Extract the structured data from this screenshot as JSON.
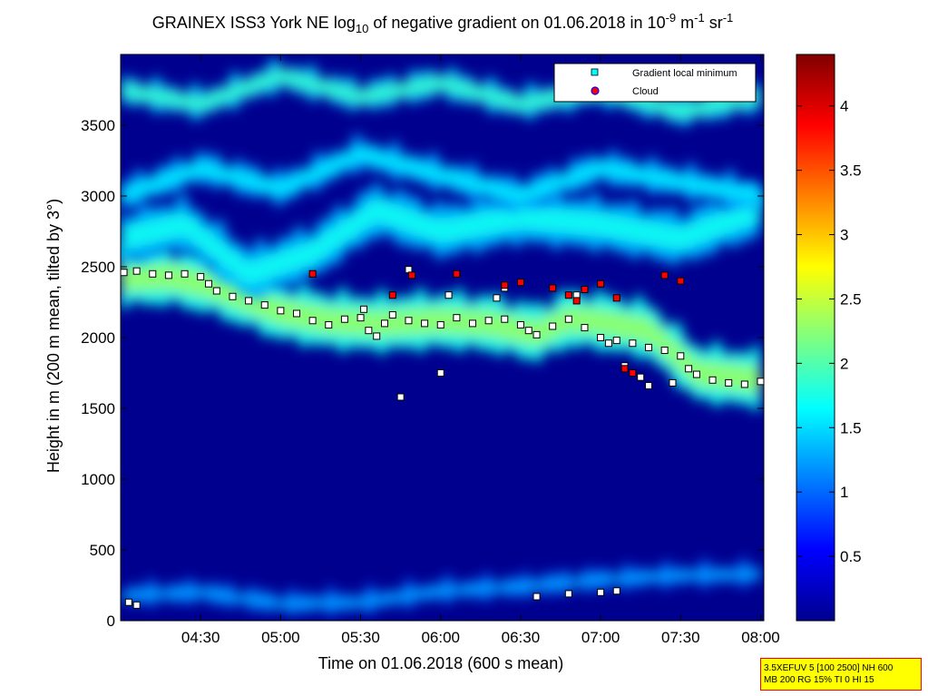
{
  "title": {
    "prefix": "GRAINEX ISS3 York NE log",
    "sub": "10",
    "middle": " of negative gradient on 01.06.2018 in 10",
    "sup1": "-9",
    "unit1": " m",
    "sup2": "-1",
    "unit2": " sr",
    "sup3": "-1"
  },
  "settings_box": {
    "line1": "3.5XEFUV 5 [100 2500] NH 600",
    "line2": "MB 200 RG 15% TI 0 HI 15"
  },
  "colors": {
    "background_field": "#00008f",
    "frame": "#000000",
    "local_minimum_marker": "#00ffff",
    "cloud_marker": "#ff0000"
  },
  "chart_data": {
    "type": "heatmap",
    "xlabel": "Time on 01.06.2018 (600 s mean)",
    "ylabel": "Height in m (200 m mean, tilted by 3°)",
    "x_ticks": [
      "04:30",
      "05:00",
      "05:30",
      "06:00",
      "06:30",
      "07:00",
      "07:30",
      "08:00"
    ],
    "x_tick_hours": [
      4.5,
      5.0,
      5.5,
      6.0,
      6.5,
      7.0,
      7.5,
      8.0
    ],
    "xlim_hours": [
      4.0,
      8.02
    ],
    "y_ticks": [
      0,
      500,
      1000,
      1500,
      2000,
      2500,
      3000,
      3500
    ],
    "ylim": [
      0,
      4000
    ],
    "colorbar": {
      "colormap": "jet",
      "range": [
        0.0,
        4.4
      ],
      "ticks": [
        0.5,
        1,
        1.5,
        2,
        2.5,
        3,
        3.5,
        4
      ],
      "tick_labels": [
        "0.5",
        "1",
        "1.5",
        "2",
        "2.5",
        "3",
        "3.5",
        "4"
      ]
    },
    "legend": {
      "location": "top-right",
      "entries": [
        {
          "label": "Gradient local minimum",
          "marker": "square",
          "color": "#00ffff"
        },
        {
          "label": "Cloud",
          "marker": "circle",
          "color": "#ff0000"
        }
      ]
    },
    "layers": [
      {
        "name": "",
        "profile": [
          [
            4.0,
            2420
          ],
          [
            4.3,
            2430
          ],
          [
            4.55,
            2370
          ],
          [
            5.0,
            2180
          ],
          [
            5.3,
            2120
          ],
          [
            5.6,
            2100
          ],
          [
            6.0,
            2120
          ],
          [
            6.3,
            2100
          ],
          [
            6.6,
            2030
          ],
          [
            6.8,
            2130
          ],
          [
            7.0,
            2110
          ],
          [
            7.3,
            2050
          ],
          [
            7.6,
            1750
          ],
          [
            8.0,
            1700
          ]
        ],
        "thickness": 380,
        "level": 2.3
      },
      {
        "name": "",
        "profile": [
          [
            4.0,
            2700
          ],
          [
            4.4,
            2800
          ],
          [
            4.8,
            2450
          ],
          [
            5.2,
            2600
          ],
          [
            5.6,
            2900
          ],
          [
            6.0,
            2750
          ],
          [
            6.5,
            2850
          ],
          [
            7.0,
            2800
          ],
          [
            7.5,
            2700
          ],
          [
            8.0,
            2900
          ]
        ],
        "thickness": 350,
        "level": 1.7
      },
      {
        "name": "",
        "profile": [
          [
            4.0,
            3000
          ],
          [
            4.5,
            3200
          ],
          [
            5.0,
            3050
          ],
          [
            5.5,
            3300
          ],
          [
            6.0,
            3150
          ],
          [
            6.5,
            3000
          ],
          [
            7.0,
            3200
          ],
          [
            7.5,
            3100
          ],
          [
            8.0,
            3000
          ]
        ],
        "thickness": 200,
        "level": 1.6
      },
      {
        "name": "",
        "profile": [
          [
            4.0,
            3750
          ],
          [
            4.5,
            3650
          ],
          [
            5.0,
            3850
          ],
          [
            5.5,
            3700
          ],
          [
            6.0,
            3800
          ],
          [
            6.5,
            3650
          ],
          [
            7.0,
            3750
          ],
          [
            7.5,
            3600
          ],
          [
            8.0,
            3700
          ]
        ],
        "thickness": 180,
        "level": 1.9
      },
      {
        "name": "",
        "profile": [
          [
            4.0,
            180
          ],
          [
            4.5,
            200
          ],
          [
            5.0,
            120
          ],
          [
            5.5,
            130
          ],
          [
            6.0,
            210
          ],
          [
            6.5,
            240
          ],
          [
            7.0,
            290
          ],
          [
            7.5,
            320
          ],
          [
            8.0,
            330
          ]
        ],
        "thickness": 120,
        "level": 1.3
      }
    ],
    "series": [
      {
        "name": "Gradient local minimum",
        "marker": "square",
        "points": [
          [
            4.02,
            2460
          ],
          [
            4.1,
            2470
          ],
          [
            4.2,
            2450
          ],
          [
            4.3,
            2440
          ],
          [
            4.4,
            2450
          ],
          [
            4.5,
            2430
          ],
          [
            4.55,
            2380
          ],
          [
            4.6,
            2330
          ],
          [
            4.7,
            2290
          ],
          [
            4.8,
            2260
          ],
          [
            4.9,
            2230
          ],
          [
            5.0,
            2190
          ],
          [
            5.1,
            2170
          ],
          [
            5.2,
            2120
          ],
          [
            5.3,
            2090
          ],
          [
            5.4,
            2130
          ],
          [
            5.5,
            2140
          ],
          [
            5.55,
            2050
          ],
          [
            5.6,
            2010
          ],
          [
            5.65,
            2100
          ],
          [
            5.7,
            2160
          ],
          [
            5.8,
            2120
          ],
          [
            5.9,
            2100
          ],
          [
            6.0,
            2090
          ],
          [
            6.1,
            2140
          ],
          [
            6.2,
            2100
          ],
          [
            6.3,
            2120
          ],
          [
            6.4,
            2130
          ],
          [
            6.5,
            2090
          ],
          [
            6.55,
            2050
          ],
          [
            6.6,
            2020
          ],
          [
            6.7,
            2080
          ],
          [
            6.8,
            2130
          ],
          [
            6.9,
            2070
          ],
          [
            7.0,
            2000
          ],
          [
            7.05,
            1960
          ],
          [
            7.1,
            1980
          ],
          [
            7.2,
            1960
          ],
          [
            7.3,
            1930
          ],
          [
            7.4,
            1910
          ],
          [
            7.5,
            1870
          ],
          [
            7.55,
            1780
          ],
          [
            7.6,
            1740
          ],
          [
            7.7,
            1700
          ],
          [
            7.8,
            1680
          ],
          [
            7.9,
            1670
          ],
          [
            8.0,
            1690
          ],
          [
            5.52,
            2200
          ],
          [
            5.8,
            2480
          ],
          [
            6.05,
            2300
          ],
          [
            6.35,
            2280
          ],
          [
            6.4,
            2350
          ],
          [
            6.85,
            2300
          ],
          [
            7.15,
            1800
          ],
          [
            7.25,
            1720
          ],
          [
            7.3,
            1660
          ],
          [
            7.45,
            1680
          ],
          [
            6.0,
            1750
          ],
          [
            5.75,
            1580
          ],
          [
            4.05,
            130
          ],
          [
            4.1,
            110
          ],
          [
            6.6,
            170
          ],
          [
            6.8,
            190
          ],
          [
            7.0,
            200
          ],
          [
            7.1,
            210
          ]
        ]
      },
      {
        "name": "Cloud",
        "marker": "circle",
        "points": [
          [
            5.82,
            2440
          ],
          [
            6.1,
            2450
          ],
          [
            6.4,
            2370
          ],
          [
            6.5,
            2390
          ],
          [
            6.7,
            2350
          ],
          [
            6.8,
            2300
          ],
          [
            6.85,
            2260
          ],
          [
            6.9,
            2340
          ],
          [
            7.0,
            2380
          ],
          [
            7.1,
            2280
          ],
          [
            7.15,
            1780
          ],
          [
            7.2,
            1750
          ],
          [
            7.4,
            2440
          ],
          [
            7.5,
            2400
          ],
          [
            5.2,
            2450
          ],
          [
            5.7,
            2300
          ]
        ]
      }
    ]
  }
}
